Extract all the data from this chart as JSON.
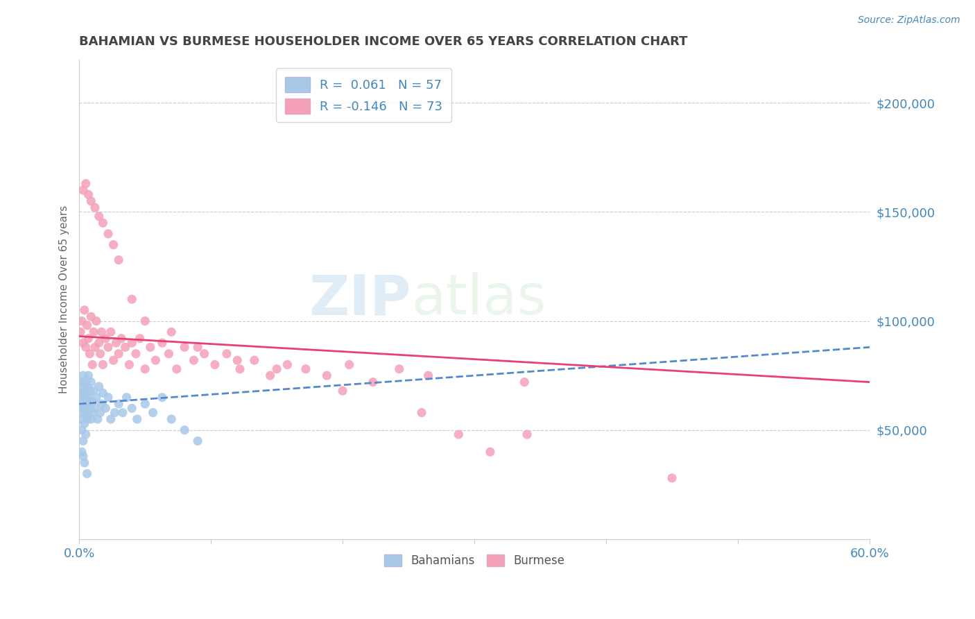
{
  "title": "BAHAMIAN VS BURMESE HOUSEHOLDER INCOME OVER 65 YEARS CORRELATION CHART",
  "source": "Source: ZipAtlas.com",
  "ylabel": "Householder Income Over 65 years",
  "xlim": [
    0.0,
    0.6
  ],
  "ylim": [
    0,
    220000
  ],
  "xticks": [
    0.0,
    0.1,
    0.2,
    0.3,
    0.4,
    0.5,
    0.6
  ],
  "xticklabels": [
    "0.0%",
    "",
    "",
    "",
    "",
    "",
    "60.0%"
  ],
  "ytick_values": [
    50000,
    100000,
    150000,
    200000
  ],
  "ytick_labels": [
    "$50,000",
    "$100,000",
    "$150,000",
    "$200,000"
  ],
  "bahamian_color": "#a8c8e8",
  "burmese_color": "#f4a0b8",
  "trend_blue_color": "#5588cc",
  "trend_pink_color": "#e84070",
  "legend_label_1": "R =  0.061   N = 57",
  "legend_label_2": "R = -0.146   N = 73",
  "watermark_zip": "ZIP",
  "watermark_atlas": "atlas",
  "background_color": "#ffffff",
  "grid_color": "#cccccc",
  "axis_color": "#4488bb",
  "title_color": "#444444",
  "bahamian_x": [
    0.001,
    0.001,
    0.001,
    0.002,
    0.002,
    0.002,
    0.002,
    0.003,
    0.003,
    0.003,
    0.003,
    0.004,
    0.004,
    0.004,
    0.005,
    0.005,
    0.005,
    0.005,
    0.006,
    0.006,
    0.006,
    0.007,
    0.007,
    0.007,
    0.008,
    0.008,
    0.009,
    0.009,
    0.01,
    0.01,
    0.011,
    0.012,
    0.013,
    0.014,
    0.015,
    0.016,
    0.017,
    0.018,
    0.02,
    0.022,
    0.024,
    0.027,
    0.03,
    0.033,
    0.036,
    0.04,
    0.044,
    0.05,
    0.056,
    0.063,
    0.07,
    0.08,
    0.09,
    0.002,
    0.003,
    0.004,
    0.006
  ],
  "bahamian_y": [
    60000,
    55000,
    65000,
    70000,
    58000,
    72000,
    50000,
    63000,
    67000,
    45000,
    75000,
    60000,
    53000,
    68000,
    58000,
    72000,
    48000,
    65000,
    55000,
    70000,
    62000,
    65000,
    57000,
    75000,
    60000,
    68000,
    55000,
    72000,
    63000,
    58000,
    68000,
    60000,
    65000,
    55000,
    70000,
    58000,
    62000,
    67000,
    60000,
    65000,
    55000,
    58000,
    62000,
    58000,
    65000,
    60000,
    55000,
    62000,
    58000,
    65000,
    55000,
    50000,
    45000,
    40000,
    38000,
    35000,
    30000
  ],
  "burmese_x": [
    0.001,
    0.002,
    0.003,
    0.004,
    0.005,
    0.006,
    0.007,
    0.008,
    0.009,
    0.01,
    0.011,
    0.012,
    0.013,
    0.015,
    0.016,
    0.017,
    0.018,
    0.02,
    0.022,
    0.024,
    0.026,
    0.028,
    0.03,
    0.032,
    0.035,
    0.038,
    0.04,
    0.043,
    0.046,
    0.05,
    0.054,
    0.058,
    0.063,
    0.068,
    0.074,
    0.08,
    0.087,
    0.095,
    0.103,
    0.112,
    0.122,
    0.133,
    0.145,
    0.158,
    0.172,
    0.188,
    0.205,
    0.223,
    0.243,
    0.265,
    0.288,
    0.312,
    0.338,
    0.003,
    0.005,
    0.007,
    0.009,
    0.012,
    0.015,
    0.018,
    0.022,
    0.026,
    0.03,
    0.04,
    0.05,
    0.07,
    0.09,
    0.12,
    0.15,
    0.2,
    0.26,
    0.34,
    0.45
  ],
  "burmese_y": [
    95000,
    100000,
    90000,
    105000,
    88000,
    98000,
    92000,
    85000,
    102000,
    80000,
    95000,
    88000,
    100000,
    90000,
    85000,
    95000,
    80000,
    92000,
    88000,
    95000,
    82000,
    90000,
    85000,
    92000,
    88000,
    80000,
    90000,
    85000,
    92000,
    78000,
    88000,
    82000,
    90000,
    85000,
    78000,
    88000,
    82000,
    85000,
    80000,
    85000,
    78000,
    82000,
    75000,
    80000,
    78000,
    75000,
    80000,
    72000,
    78000,
    75000,
    48000,
    40000,
    72000,
    160000,
    163000,
    158000,
    155000,
    152000,
    148000,
    145000,
    140000,
    135000,
    128000,
    110000,
    100000,
    95000,
    88000,
    82000,
    78000,
    68000,
    58000,
    48000,
    28000
  ]
}
